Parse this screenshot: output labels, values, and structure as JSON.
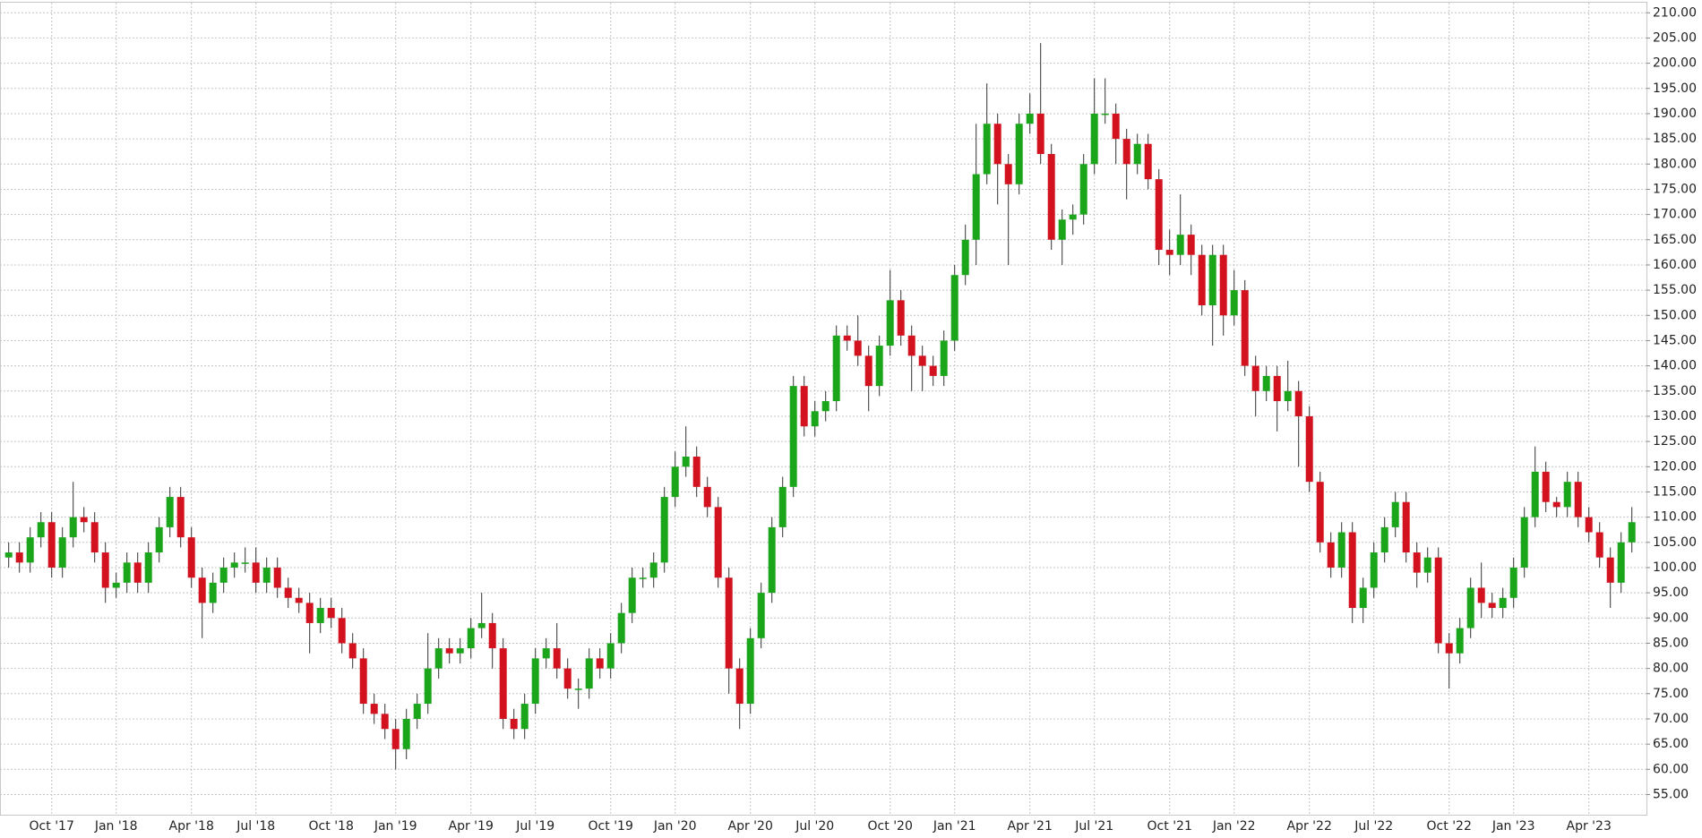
{
  "chart_data": {
    "type": "candlestick",
    "categories": [
      null,
      null,
      null,
      null,
      "Oct '17",
      null,
      null,
      null,
      null,
      null,
      "Jan '18",
      null,
      null,
      null,
      null,
      null,
      null,
      "Apr '18",
      null,
      null,
      null,
      null,
      null,
      "Jul '18",
      null,
      null,
      null,
      null,
      null,
      null,
      "Oct '18",
      null,
      null,
      null,
      null,
      null,
      "Jan '19",
      null,
      null,
      null,
      null,
      null,
      null,
      "Apr '19",
      null,
      null,
      null,
      null,
      null,
      "Jul '19",
      null,
      null,
      null,
      null,
      null,
      null,
      "Oct '19",
      null,
      null,
      null,
      null,
      null,
      "Jan '20",
      null,
      null,
      null,
      null,
      null,
      null,
      "Apr '20",
      null,
      null,
      null,
      null,
      null,
      "Jul '20",
      null,
      null,
      null,
      null,
      null,
      null,
      "Oct '20",
      null,
      null,
      null,
      null,
      null,
      "Jan '21",
      null,
      null,
      null,
      null,
      null,
      null,
      "Apr '21",
      null,
      null,
      null,
      null,
      null,
      "Jul '21",
      null,
      null,
      null,
      null,
      null,
      null,
      "Oct '21",
      null,
      null,
      null,
      null,
      null,
      "Jan '22",
      null,
      null,
      null,
      null,
      null,
      null,
      "Apr '22",
      null,
      null,
      null,
      null,
      null,
      "Jul '22",
      null,
      null,
      null,
      null,
      null,
      null,
      "Oct '22",
      null,
      null,
      null,
      null,
      null,
      "Jan '23",
      null,
      null,
      null,
      null,
      null,
      null,
      "Apr '23",
      null,
      null,
      null,
      null
    ],
    "open": [
      102,
      103,
      101,
      106,
      109,
      100,
      106,
      110,
      109,
      103,
      96,
      97,
      101,
      97,
      103,
      108,
      114,
      106,
      98,
      93,
      97,
      100,
      101,
      101,
      97,
      100,
      96,
      94,
      93,
      89,
      92,
      90,
      85,
      82,
      73,
      71,
      68,
      64,
      70,
      73,
      80,
      84,
      83,
      84,
      88,
      89,
      84,
      70,
      68,
      73,
      82,
      84,
      80,
      76,
      76,
      82,
      80,
      85,
      91,
      98,
      98,
      101,
      114,
      120,
      122,
      116,
      112,
      98,
      80,
      73,
      86,
      95,
      108,
      116,
      136,
      128,
      131,
      133,
      146,
      145,
      142,
      136,
      144,
      153,
      146,
      142,
      140,
      138,
      145,
      158,
      165,
      178,
      188,
      180,
      176,
      188,
      190,
      182,
      165,
      169,
      170,
      180,
      190,
      190,
      185,
      180,
      184,
      177,
      163,
      162,
      166,
      162,
      152,
      162,
      150,
      155,
      140,
      135,
      138,
      133,
      135,
      130,
      117,
      105,
      100,
      107,
      92,
      96,
      103,
      108,
      113,
      103,
      99,
      102,
      85,
      83,
      88,
      96,
      93,
      92,
      94,
      100,
      110,
      119,
      113,
      112,
      117,
      110,
      107,
      102,
      97,
      105
    ],
    "high": [
      105,
      105,
      108,
      111,
      111,
      108,
      117,
      112,
      111,
      105,
      99,
      103,
      103,
      105,
      110,
      116,
      116,
      108,
      100,
      99,
      102,
      103,
      104,
      104,
      102,
      102,
      98,
      96,
      95,
      94,
      94,
      92,
      87,
      84,
      75,
      73,
      70,
      72,
      75,
      87,
      86,
      86,
      86,
      90,
      95,
      91,
      86,
      72,
      75,
      84,
      86,
      89,
      82,
      78,
      84,
      84,
      87,
      93,
      100,
      100,
      103,
      116,
      123,
      128,
      124,
      118,
      114,
      100,
      82,
      88,
      97,
      110,
      118,
      138,
      138,
      133,
      135,
      148,
      148,
      150,
      144,
      146,
      159,
      155,
      148,
      144,
      142,
      147,
      160,
      168,
      188,
      196,
      190,
      182,
      190,
      194,
      204,
      184,
      171,
      172,
      182,
      197,
      197,
      192,
      187,
      186,
      186,
      179,
      167,
      174,
      168,
      164,
      164,
      164,
      159,
      157,
      142,
      140,
      140,
      141,
      137,
      132,
      119,
      107,
      109,
      109,
      98,
      105,
      110,
      115,
      115,
      105,
      104,
      104,
      87,
      90,
      98,
      101,
      95,
      96,
      102,
      112,
      124,
      121,
      114,
      119,
      119,
      112,
      109,
      104,
      107,
      112
    ],
    "low": [
      100,
      99,
      99,
      104,
      98,
      98,
      104,
      107,
      101,
      93,
      94,
      95,
      95,
      95,
      101,
      106,
      104,
      96,
      86,
      91,
      95,
      98,
      99,
      95,
      95,
      94,
      92,
      91,
      83,
      87,
      88,
      83,
      80,
      71,
      69,
      66,
      60,
      62,
      68,
      71,
      78,
      81,
      81,
      82,
      86,
      80,
      68,
      66,
      66,
      71,
      80,
      78,
      74,
      72,
      74,
      78,
      78,
      83,
      89,
      96,
      96,
      99,
      112,
      118,
      114,
      110,
      96,
      75,
      68,
      71,
      84,
      93,
      106,
      114,
      126,
      126,
      129,
      131,
      143,
      140,
      131,
      134,
      142,
      144,
      135,
      135,
      136,
      136,
      143,
      156,
      160,
      176,
      172,
      160,
      174,
      186,
      180,
      163,
      160,
      166,
      168,
      178,
      188,
      180,
      173,
      178,
      175,
      160,
      158,
      160,
      158,
      150,
      144,
      146,
      148,
      138,
      130,
      133,
      127,
      131,
      120,
      115,
      103,
      98,
      98,
      89,
      89,
      94,
      101,
      106,
      101,
      96,
      97,
      83,
      76,
      81,
      86,
      90,
      90,
      90,
      92,
      98,
      108,
      111,
      110,
      110,
      108,
      105,
      100,
      92,
      95,
      103
    ],
    "close": [
      103,
      101,
      106,
      109,
      100,
      106,
      110,
      109,
      103,
      96,
      97,
      101,
      97,
      103,
      108,
      114,
      106,
      98,
      93,
      97,
      100,
      101,
      101,
      97,
      100,
      96,
      94,
      93,
      89,
      92,
      90,
      85,
      82,
      73,
      71,
      68,
      64,
      70,
      73,
      80,
      84,
      83,
      84,
      88,
      89,
      84,
      70,
      68,
      73,
      82,
      84,
      80,
      76,
      76,
      82,
      80,
      85,
      91,
      98,
      98,
      101,
      114,
      120,
      122,
      116,
      112,
      98,
      80,
      73,
      86,
      95,
      108,
      116,
      136,
      128,
      131,
      133,
      146,
      145,
      142,
      136,
      144,
      153,
      146,
      142,
      140,
      138,
      145,
      158,
      165,
      178,
      188,
      180,
      176,
      188,
      190,
      182,
      165,
      169,
      170,
      180,
      190,
      190,
      185,
      180,
      184,
      177,
      163,
      162,
      166,
      162,
      152,
      162,
      150,
      155,
      140,
      135,
      138,
      133,
      135,
      130,
      117,
      105,
      100,
      107,
      92,
      96,
      103,
      108,
      113,
      103,
      99,
      102,
      85,
      83,
      88,
      96,
      93,
      92,
      94,
      100,
      110,
      119,
      113,
      112,
      117,
      110,
      107,
      102,
      97,
      105,
      109
    ],
    "up_color": "#1aa51a",
    "down_color": "#d2121e",
    "ylim": [
      51,
      212
    ],
    "yticks": [
      {
        "value": 55,
        "label": "55.00"
      },
      {
        "value": 60,
        "label": "60.00"
      },
      {
        "value": 65,
        "label": "65.00"
      },
      {
        "value": 70,
        "label": "70.00"
      },
      {
        "value": 75,
        "label": "75.00"
      },
      {
        "value": 80,
        "label": "80.00"
      },
      {
        "value": 85,
        "label": "85.00"
      },
      {
        "value": 90,
        "label": "90.00"
      },
      {
        "value": 95,
        "label": "95.00"
      },
      {
        "value": 100,
        "label": "100.00"
      },
      {
        "value": 105,
        "label": "105.00"
      },
      {
        "value": 110,
        "label": "110.00"
      },
      {
        "value": 115,
        "label": "115.00"
      },
      {
        "value": 120,
        "label": "120.00"
      },
      {
        "value": 125,
        "label": "125.00"
      },
      {
        "value": 130,
        "label": "130.00"
      },
      {
        "value": 135,
        "label": "135.00"
      },
      {
        "value": 140,
        "label": "140.00"
      },
      {
        "value": 145,
        "label": "145.00"
      },
      {
        "value": 150,
        "label": "150.00"
      },
      {
        "value": 155,
        "label": "155.00"
      },
      {
        "value": 160,
        "label": "160.00"
      },
      {
        "value": 165,
        "label": "165.00"
      },
      {
        "value": 170,
        "label": "170.00"
      },
      {
        "value": 175,
        "label": "175.00"
      },
      {
        "value": 180,
        "label": "180.00"
      },
      {
        "value": 185,
        "label": "185.00"
      },
      {
        "value": 190,
        "label": "190.00"
      },
      {
        "value": 195,
        "label": "195.00"
      },
      {
        "value": 200,
        "label": "200.00"
      },
      {
        "value": 205,
        "label": "205.00"
      },
      {
        "value": 210,
        "label": "210.00"
      }
    ],
    "grid": true
  }
}
